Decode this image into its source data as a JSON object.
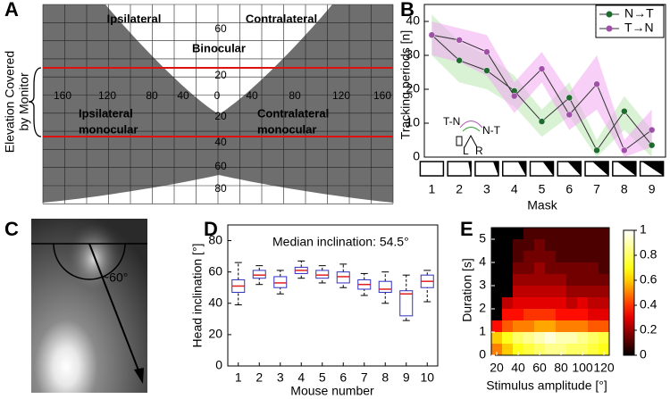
{
  "panel_labels": [
    "A",
    "B",
    "C",
    "D",
    "E"
  ],
  "panel_a": {
    "ipsilateral": "Ipsilateral",
    "contralateral": "Contralateral",
    "binocular": "Binocular",
    "ipsi_mono": [
      "Ipsilateral",
      "monocular"
    ],
    "contra_mono": [
      "Contralateral",
      "monocular"
    ],
    "side_label": [
      "Elevation Covered",
      "by Monitor"
    ],
    "azimuth_labels": [
      "160",
      "120",
      "80",
      "40",
      "0",
      "40",
      "80",
      "120",
      "160"
    ],
    "elevation_labels": [
      "60",
      "20",
      "20",
      "40",
      "60",
      "80"
    ]
  },
  "panel_c": {
    "angle_label": "~60°"
  },
  "chart_data": [
    {
      "type": "line",
      "ylabel": "Tracking periods [n]",
      "xlabel": "Mask",
      "legend": "top-right",
      "x": [
        1,
        2,
        3,
        4,
        5,
        6,
        7,
        8,
        9
      ],
      "xlim": [
        0.5,
        9.5
      ],
      "xticks": [
        1,
        2,
        3,
        4,
        5,
        6,
        7,
        8,
        9
      ],
      "ylim": [
        0,
        45
      ],
      "yticks": [
        0,
        10,
        20,
        30,
        40
      ],
      "series": [
        {
          "name": "N→T",
          "color": "#1e6b2e",
          "band_color": "#b9e8b0",
          "values": [
            36,
            28.5,
            25.5,
            19.5,
            10.5,
            17.5,
            2,
            13.5,
            3.5
          ],
          "lower": [
            30,
            22,
            20,
            15,
            6,
            12,
            0,
            8,
            0
          ],
          "upper": [
            42,
            34,
            30,
            24,
            14,
            22,
            5,
            18,
            8
          ]
        },
        {
          "name": "T→N",
          "color": "#a050a8",
          "band_color": "#f0a8f0",
          "values": [
            36,
            34.5,
            31,
            18,
            26,
            12.5,
            21.5,
            2,
            8
          ],
          "lower": [
            30,
            28,
            24,
            13,
            22,
            8,
            14,
            0,
            3
          ],
          "upper": [
            40,
            38,
            36,
            22,
            31,
            19,
            30,
            5,
            14
          ]
        }
      ],
      "inset": {
        "left": "T-N",
        "right": "N-T",
        "l": "L",
        "r": "R"
      }
    },
    {
      "type": "box",
      "ylabel": "Head inclination [°]",
      "xlabel": "Mouse number",
      "annotation": "Median inclination: 54.5°",
      "x": [
        1,
        2,
        3,
        4,
        5,
        6,
        7,
        8,
        9,
        10
      ],
      "xlim": [
        0.5,
        10.5
      ],
      "xticks": [
        1,
        2,
        3,
        4,
        5,
        6,
        7,
        8,
        9,
        10
      ],
      "ylim": [
        0,
        90
      ],
      "yticks": [
        0,
        20,
        40,
        60,
        80
      ],
      "median": [
        51,
        58,
        53,
        61,
        58,
        57,
        52,
        49,
        46,
        54
      ],
      "q1": [
        47,
        56,
        50,
        59,
        56,
        53,
        49,
        47,
        32,
        50
      ],
      "q3": [
        55,
        61,
        57,
        63,
        61,
        60,
        55,
        54,
        48,
        58
      ],
      "whisker_low": [
        39,
        52,
        46,
        56,
        53,
        50,
        45,
        40,
        29,
        41
      ],
      "whisker_high": [
        66,
        64,
        61,
        67,
        64,
        65,
        59,
        60,
        58,
        61
      ],
      "box_color": "#3030c0",
      "median_color": "#e02020"
    },
    {
      "type": "heatmap",
      "ylabel": "Duration [s]",
      "xlabel": "Stimulus amplitude [°]",
      "x": [
        20,
        30,
        40,
        50,
        60,
        70,
        80,
        90,
        100,
        110,
        120
      ],
      "y": [
        0,
        0.5,
        1,
        1.5,
        2,
        2.5,
        3,
        3.5,
        4,
        4.5,
        5
      ],
      "xlim": [
        15,
        125
      ],
      "xticks": [
        20,
        40,
        60,
        80,
        100,
        120
      ],
      "ylim": [
        0,
        5.5
      ],
      "yticks": [
        0,
        1,
        2,
        3,
        4,
        5
      ],
      "clim": [
        0,
        1
      ],
      "cticks": [
        0,
        0.2,
        0.4,
        0.6,
        0.8,
        1
      ],
      "z": [
        [
          0.5,
          0.6,
          0.7,
          0.75,
          0.8,
          0.85,
          0.85,
          0.8,
          0.8,
          0.75,
          0.7
        ],
        [
          0.6,
          0.7,
          0.8,
          0.85,
          0.9,
          0.95,
          0.9,
          0.9,
          0.85,
          0.8,
          0.75
        ],
        [
          0.35,
          0.45,
          0.5,
          0.5,
          0.55,
          0.55,
          0.5,
          0.5,
          0.5,
          0.45,
          0.45
        ],
        [
          0,
          0.35,
          0.35,
          0.4,
          0.4,
          0.4,
          0.35,
          0.35,
          0.35,
          0.3,
          0.3
        ],
        [
          0,
          0.25,
          0.3,
          0.3,
          0.3,
          0.3,
          0.3,
          0.25,
          0.3,
          0.25,
          0.25
        ],
        [
          0,
          0,
          0.25,
          0.25,
          0.25,
          0.25,
          0.25,
          0.2,
          0.2,
          0.2,
          0.2
        ],
        [
          0,
          0,
          0.2,
          0.2,
          0.2,
          0.2,
          0.2,
          0.15,
          0.15,
          0.15,
          0.15
        ],
        [
          0,
          0,
          0.15,
          0.15,
          0.2,
          0.15,
          0.15,
          0.15,
          0.15,
          0.15,
          0.1
        ],
        [
          0,
          0,
          0.1,
          0.15,
          0.15,
          0.15,
          0.1,
          0.1,
          0.1,
          0.1,
          0.1
        ],
        [
          0,
          0,
          0.1,
          0.1,
          0.15,
          0.1,
          0.1,
          0.1,
          0.1,
          0.1,
          0.1
        ],
        [
          0,
          0,
          0,
          0.1,
          0.1,
          0.1,
          0.1,
          0.1,
          0.1,
          0.1,
          0.1
        ]
      ]
    }
  ]
}
